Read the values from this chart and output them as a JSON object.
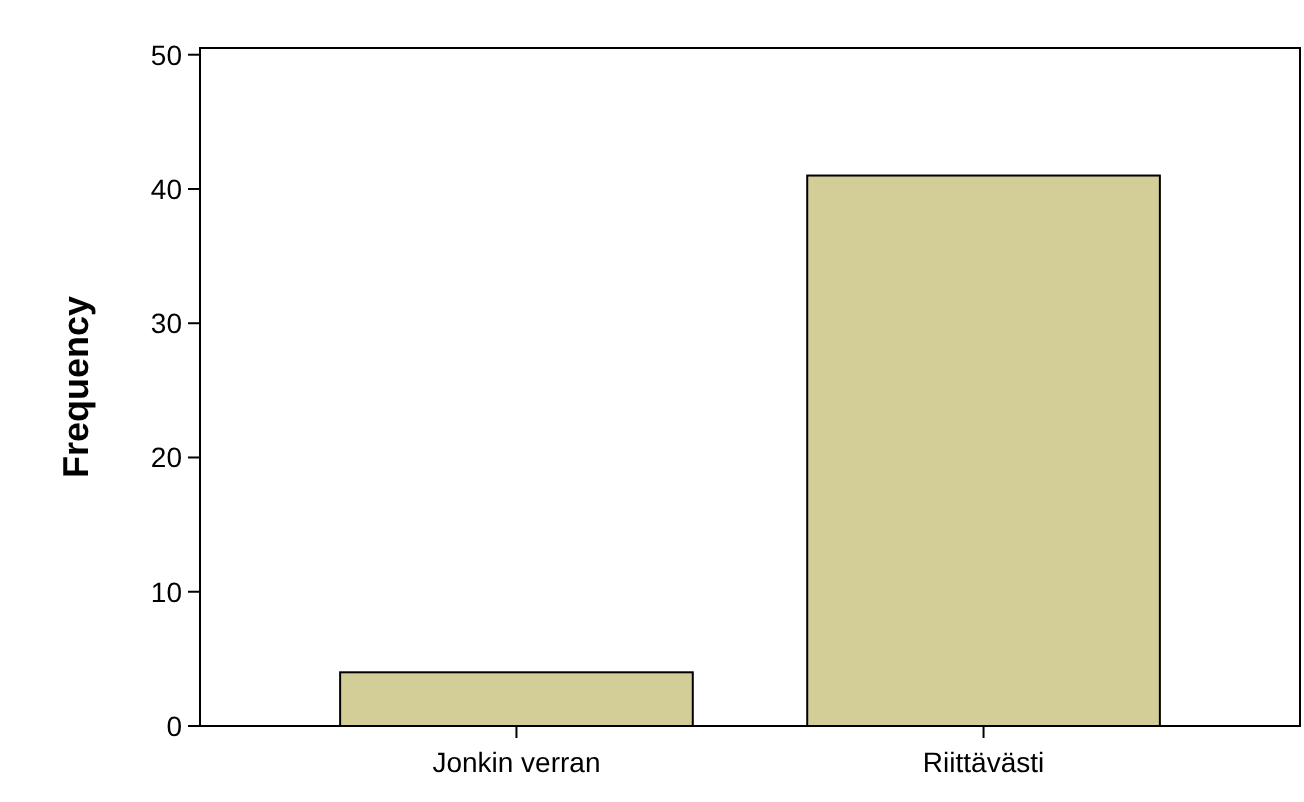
{
  "chart_data": {
    "type": "bar",
    "ylabel": "Frequency",
    "categories": [
      "Jonkin verran",
      "Riittävästi"
    ],
    "values": [
      4,
      41
    ],
    "color": "#d3cd98",
    "ylim": [
      0,
      50.5
    ],
    "yticks": [
      0,
      10,
      20,
      30,
      40,
      50
    ],
    "grid": false
  }
}
